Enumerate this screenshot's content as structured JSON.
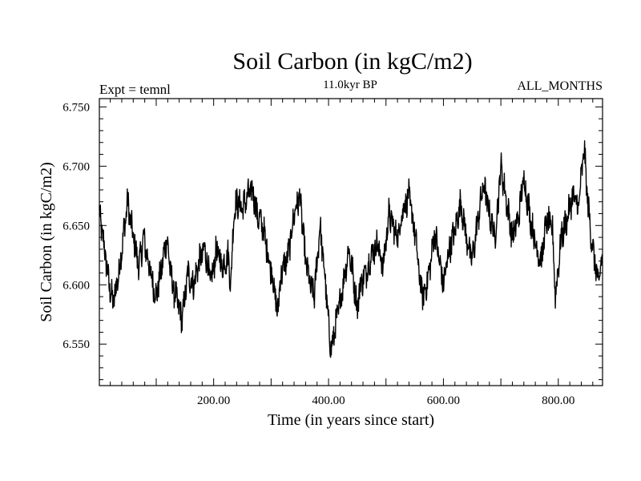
{
  "chart_data": {
    "type": "line",
    "title": "Soil Carbon (in kgC/m2)",
    "subtitle": "11.0kyr BP",
    "left_label": "Expt = temnl",
    "right_label": "ALL_MONTHS",
    "xlabel": "Time (in years since start)",
    "ylabel": "Soil Carbon (in kgC/m2)",
    "xlim": [
      1,
      877
    ],
    "ylim": [
      6.515,
      6.757
    ],
    "x_ticks": [
      200,
      400,
      600,
      800
    ],
    "x_tick_labels": [
      "200.00",
      "400.00",
      "600.00",
      "800.00"
    ],
    "y_ticks": [
      6.55,
      6.6,
      6.65,
      6.7,
      6.75
    ],
    "y_tick_labels": [
      "6.550",
      "6.600",
      "6.650",
      "6.700",
      "6.750"
    ],
    "series": [
      {
        "name": "Soil Carbon",
        "color": "#000000",
        "x": [
          1,
          10,
          18,
          25,
          35,
          45,
          50,
          60,
          70,
          78,
          90,
          100,
          108,
          118,
          128,
          140,
          145,
          155,
          165,
          175,
          185,
          195,
          205,
          215,
          225,
          230,
          235,
          240,
          250,
          260,
          268,
          275,
          285,
          295,
          305,
          310,
          318,
          330,
          340,
          350,
          360,
          368,
          375,
          385,
          395,
          400,
          405,
          410,
          418,
          425,
          435,
          442,
          450,
          455,
          465,
          475,
          485,
          495,
          505,
          512,
          520,
          530,
          540,
          550,
          560,
          565,
          575,
          585,
          593,
          600,
          610,
          620,
          630,
          640,
          650,
          660,
          670,
          680,
          690,
          700,
          710,
          720,
          730,
          740,
          750,
          760,
          770,
          780,
          790,
          795,
          805,
          815,
          825,
          835,
          845,
          852,
          860,
          870,
          877
        ],
        "values": [
          6.66,
          6.63,
          6.6,
          6.585,
          6.61,
          6.65,
          6.67,
          6.64,
          6.615,
          6.64,
          6.61,
          6.59,
          6.61,
          6.64,
          6.6,
          6.58,
          6.57,
          6.61,
          6.6,
          6.62,
          6.63,
          6.6,
          6.63,
          6.615,
          6.625,
          6.6,
          6.66,
          6.67,
          6.665,
          6.675,
          6.68,
          6.66,
          6.65,
          6.625,
          6.6,
          6.575,
          6.61,
          6.625,
          6.66,
          6.675,
          6.62,
          6.6,
          6.59,
          6.65,
          6.6,
          6.565,
          6.545,
          6.56,
          6.58,
          6.6,
          6.63,
          6.61,
          6.58,
          6.6,
          6.61,
          6.625,
          6.635,
          6.615,
          6.66,
          6.65,
          6.64,
          6.665,
          6.675,
          6.645,
          6.6,
          6.59,
          6.61,
          6.645,
          6.62,
          6.6,
          6.63,
          6.645,
          6.67,
          6.64,
          6.62,
          6.655,
          6.685,
          6.66,
          6.64,
          6.7,
          6.67,
          6.64,
          6.655,
          6.69,
          6.66,
          6.635,
          6.62,
          6.655,
          6.645,
          6.59,
          6.64,
          6.655,
          6.675,
          6.665,
          6.715,
          6.665,
          6.63,
          6.6,
          6.625
        ]
      }
    ]
  }
}
